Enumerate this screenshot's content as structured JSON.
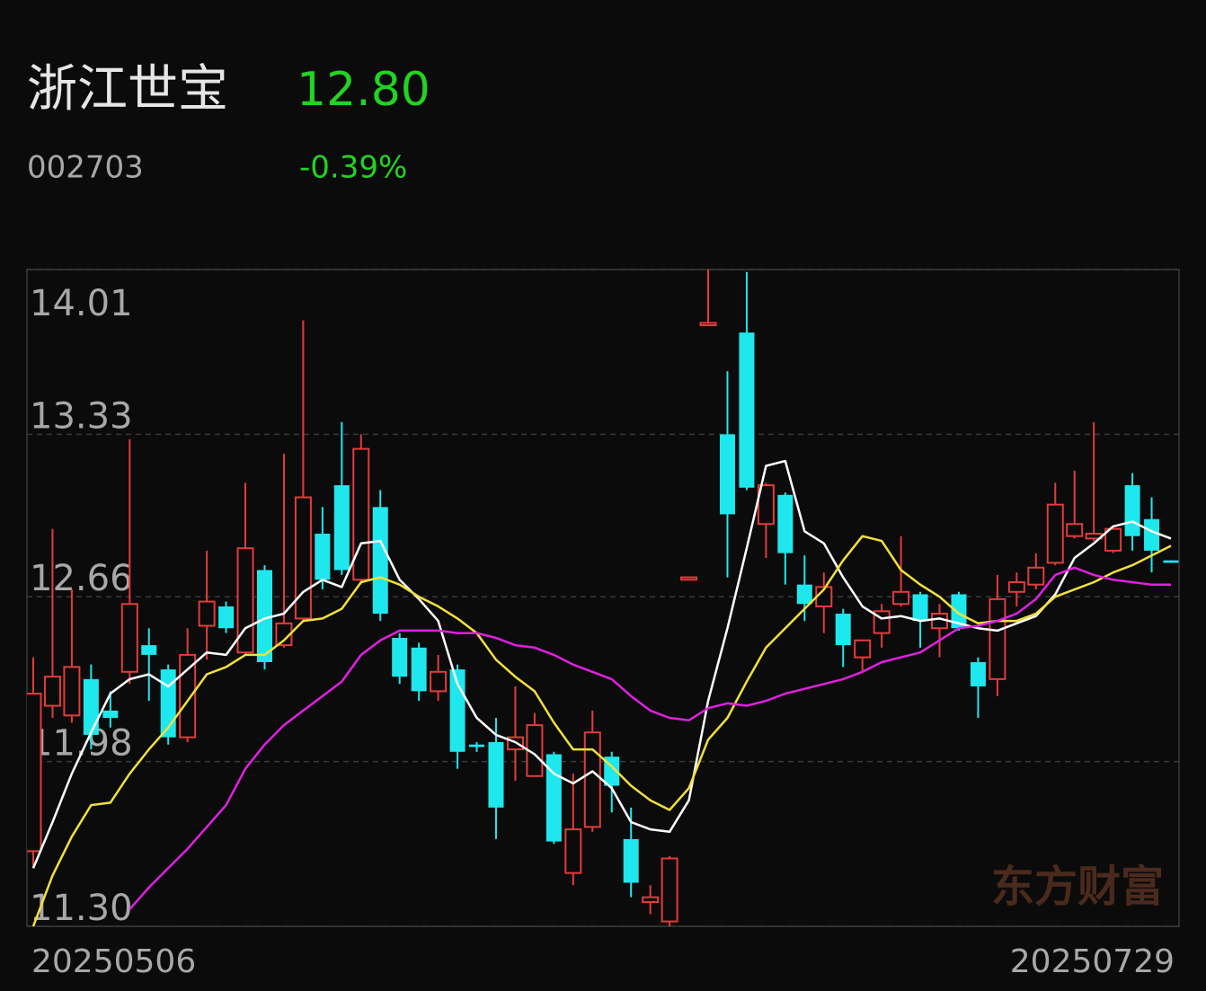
{
  "header": {
    "name": "浙江世宝",
    "price": "12.80",
    "code": "002703",
    "change": "-0.39%"
  },
  "watermark": "东方财富",
  "chart_data": {
    "type": "candlestick",
    "categories": [
      "20250506",
      null,
      null,
      null,
      null,
      null,
      null,
      null,
      null,
      null,
      null,
      null,
      null,
      null,
      null,
      null,
      null,
      null,
      null,
      null,
      null,
      null,
      null,
      null,
      null,
      null,
      null,
      null,
      null,
      null,
      null,
      null,
      null,
      null,
      null,
      null,
      null,
      null,
      null,
      null,
      null,
      null,
      null,
      null,
      null,
      null,
      null,
      null,
      null,
      null,
      null,
      null,
      null,
      null,
      null,
      null,
      null,
      null,
      null,
      "20250729"
    ],
    "open": [
      11.61,
      12.21,
      12.17,
      12.32,
      12.19,
      12.35,
      12.46,
      12.36,
      12.08,
      12.54,
      12.62,
      12.43,
      12.77,
      12.46,
      12.57,
      12.92,
      13.12,
      12.73,
      13.03,
      12.49,
      12.45,
      12.27,
      12.36,
      12.05,
      12.06,
      12.03,
      11.92,
      12.01,
      11.52,
      11.71,
      12.0,
      11.66,
      11.4,
      11.32,
      12.73,
      13.78,
      13.33,
      13.75,
      12.96,
      13.08,
      12.71,
      12.62,
      12.59,
      12.41,
      12.51,
      12.63,
      12.67,
      12.53,
      12.67,
      12.39,
      12.32,
      12.68,
      12.71,
      12.8,
      12.91,
      12.9,
      12.85,
      13.12,
      12.98,
      12.81
    ],
    "high": [
      12.41,
      12.94,
      12.69,
      12.38,
      12.27,
      13.31,
      12.53,
      12.38,
      12.53,
      12.85,
      12.64,
      13.13,
      12.79,
      13.25,
      13.8,
      13.03,
      13.38,
      13.33,
      13.1,
      12.51,
      12.47,
      12.42,
      12.38,
      12.06,
      12.16,
      12.29,
      12.18,
      12.02,
      11.93,
      12.19,
      12.02,
      11.79,
      11.47,
      11.59,
      12.74,
      14.01,
      13.59,
      14.0,
      13.13,
      13.09,
      12.83,
      12.76,
      12.61,
      12.48,
      12.63,
      12.91,
      12.68,
      12.63,
      12.68,
      12.41,
      12.75,
      12.76,
      12.84,
      13.13,
      13.18,
      13.38,
      12.94,
      13.17,
      13.07,
      12.81
    ],
    "low": [
      11.54,
      12.16,
      12.14,
      12.03,
      12.12,
      12.3,
      12.23,
      12.05,
      12.06,
      12.4,
      12.51,
      12.42,
      12.36,
      12.45,
      12.56,
      12.69,
      12.75,
      12.71,
      12.56,
      12.3,
      12.23,
      12.23,
      11.95,
      12.02,
      11.66,
      11.9,
      11.92,
      11.64,
      11.47,
      11.69,
      11.77,
      11.42,
      11.35,
      11.3,
      12.73,
      13.78,
      12.74,
      13.1,
      12.82,
      12.71,
      12.56,
      12.51,
      12.37,
      12.35,
      12.45,
      12.62,
      12.45,
      12.41,
      12.52,
      12.16,
      12.25,
      12.62,
      12.69,
      12.79,
      12.9,
      12.89,
      12.84,
      12.85,
      12.76,
      12.8
    ],
    "close": [
      12.26,
      12.33,
      12.37,
      12.09,
      12.16,
      12.63,
      12.42,
      12.08,
      12.42,
      12.64,
      12.53,
      12.86,
      12.39,
      12.55,
      13.07,
      12.73,
      12.77,
      13.27,
      12.59,
      12.33,
      12.27,
      12.35,
      12.02,
      12.04,
      11.79,
      12.08,
      12.13,
      11.65,
      11.7,
      12.1,
      11.88,
      11.48,
      11.42,
      11.58,
      12.74,
      13.79,
      13.0,
      13.11,
      13.12,
      12.84,
      12.63,
      12.7,
      12.46,
      12.48,
      12.6,
      12.68,
      12.56,
      12.59,
      12.53,
      12.29,
      12.65,
      12.72,
      12.78,
      13.04,
      12.96,
      12.92,
      12.94,
      12.91,
      12.85,
      12.8
    ],
    "up_color": "#e23c3c",
    "down_color": "#1ee8ee",
    "moving_averages": [
      {
        "color": "#ffffff",
        "values": [
          11.54,
          11.73,
          11.93,
          12.1,
          12.26,
          12.32,
          12.34,
          12.29,
          12.36,
          12.43,
          12.42,
          12.53,
          12.57,
          12.59,
          12.68,
          12.73,
          12.7,
          12.88,
          12.89,
          12.73,
          12.65,
          12.56,
          12.3,
          12.16,
          12.09,
          12.06,
          12.01,
          11.93,
          11.89,
          11.94,
          11.87,
          11.73,
          11.7,
          11.69,
          11.82,
          12.23,
          12.53,
          12.86,
          13.2,
          13.22,
          12.93,
          12.88,
          12.74,
          12.62,
          12.57,
          12.58,
          12.56,
          12.57,
          12.55,
          12.53,
          12.52,
          12.55,
          12.58,
          12.67,
          12.82,
          12.88,
          12.95,
          12.97,
          12.93,
          12.9
        ]
      },
      {
        "color": "#f2e03a",
        "values": [
          11.3,
          11.51,
          11.67,
          11.8,
          11.81,
          11.93,
          12.03,
          12.12,
          12.23,
          12.34,
          12.37,
          12.42,
          12.42,
          12.48,
          12.56,
          12.57,
          12.61,
          12.72,
          12.74,
          12.71,
          12.66,
          12.62,
          12.57,
          12.51,
          12.4,
          12.33,
          12.27,
          12.14,
          12.03,
          12.03,
          11.96,
          11.88,
          11.82,
          11.78,
          11.87,
          12.07,
          12.16,
          12.31,
          12.45,
          12.53,
          12.61,
          12.69,
          12.81,
          12.91,
          12.89,
          12.77,
          12.71,
          12.66,
          12.59,
          12.55,
          12.56,
          12.56,
          12.59,
          12.66,
          12.69,
          12.72,
          12.76,
          12.79,
          12.83,
          12.87
        ]
      },
      {
        "color": "#e020e0",
        "values": [
          null,
          null,
          null,
          null,
          null,
          11.37,
          11.46,
          11.54,
          11.62,
          11.71,
          11.8,
          11.95,
          12.05,
          12.13,
          12.19,
          12.25,
          12.31,
          12.42,
          12.48,
          12.52,
          12.52,
          12.52,
          12.51,
          12.51,
          12.49,
          12.46,
          12.45,
          12.42,
          12.38,
          12.35,
          12.32,
          12.25,
          12.19,
          12.16,
          12.15,
          12.2,
          12.22,
          12.21,
          12.23,
          12.26,
          12.28,
          12.3,
          12.32,
          12.35,
          12.39,
          12.41,
          12.43,
          12.48,
          12.53,
          12.54,
          12.56,
          12.59,
          12.65,
          12.75,
          12.78,
          12.75,
          12.73,
          12.72,
          12.71,
          12.71
        ]
      }
    ],
    "ylim": [
      11.3,
      14.01
    ],
    "yticks": [
      14.01,
      13.33,
      12.66,
      11.98,
      {
        "value": 11.3,
        "label": "11.30"
      }
    ],
    "grid": true
  }
}
